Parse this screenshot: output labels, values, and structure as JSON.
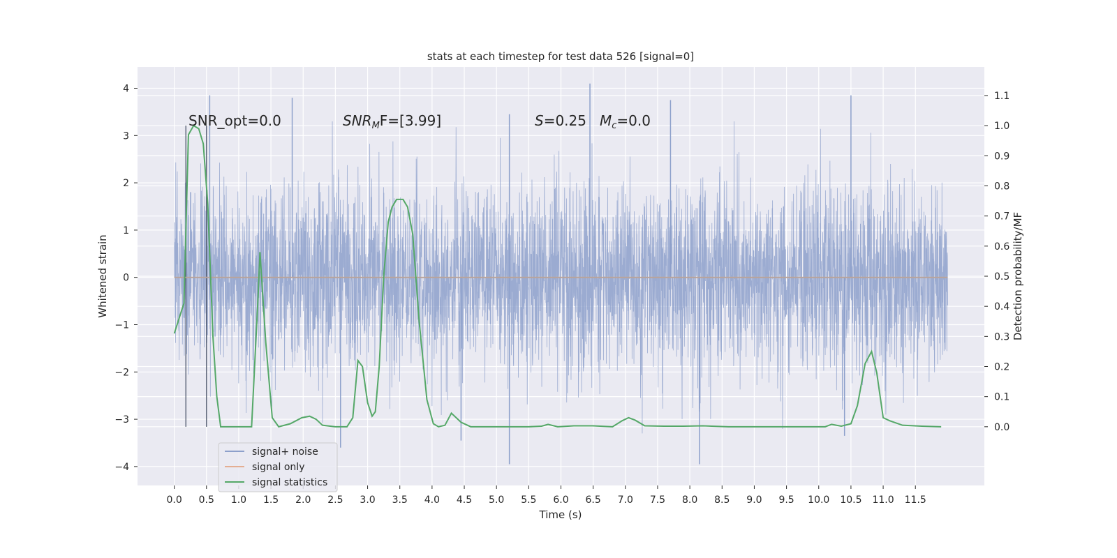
{
  "chart_data": {
    "type": "line",
    "title": "stats at each timestep for test data 526 [signal=0]",
    "xlabel": "Time (s)",
    "ylabel_left": "Whitened strain",
    "ylabel_right": "Detection probability/MF",
    "xlim": [
      -0.57,
      12.57
    ],
    "ylim_left": [
      -4.4,
      4.45
    ],
    "ylim_right": [
      -0.195,
      1.195
    ],
    "x_ticks": [
      0.0,
      0.5,
      1.0,
      1.5,
      2.0,
      2.5,
      3.0,
      3.5,
      4.0,
      4.5,
      5.0,
      5.5,
      6.0,
      6.5,
      7.0,
      7.5,
      8.0,
      8.5,
      9.0,
      9.5,
      10.0,
      10.5,
      11.0,
      11.5
    ],
    "x_tick_labels": [
      "0.0",
      "0.5",
      "1.0",
      "1.5",
      "2.0",
      "2.5",
      "3.0",
      "3.5",
      "4.0",
      "4.5",
      "5.0",
      "5.5",
      "6.0",
      "6.5",
      "7.0",
      "7.5",
      "8.0",
      "8.5",
      "9.0",
      "9.5",
      "10.0",
      "10.5",
      "11.0",
      "11.5"
    ],
    "y_left_ticks": [
      -4,
      -3,
      -2,
      -1,
      0,
      1,
      2,
      3,
      4
    ],
    "y_left_tick_labels": [
      "−4",
      "−3",
      "−2",
      "−1",
      "0",
      "1",
      "2",
      "3",
      "4"
    ],
    "y_right_ticks": [
      0.0,
      0.1,
      0.2,
      0.3,
      0.4,
      0.5,
      0.6,
      0.7,
      0.8,
      0.9,
      1.0,
      1.1
    ],
    "y_right_tick_labels": [
      "0.0",
      "0.1",
      "0.2",
      "0.3",
      "0.4",
      "0.5",
      "0.6",
      "0.7",
      "0.8",
      "0.9",
      "1.0",
      "1.1"
    ],
    "grid": true,
    "legend_position": "lower-left",
    "annotations": {
      "snr_opt": "SNR_opt=0.0",
      "snr_mf_main": "SNR",
      "snr_mf_sub": "M",
      "snr_mf_rest": "F=[3.99]",
      "s_italic": "S",
      "s_value": "=0.25",
      "mc_main": "M",
      "mc_sub": "c",
      "mc_value": "=0.0"
    },
    "vertical_markers_x": [
      0.18,
      0.5
    ],
    "series": [
      {
        "name": "signal+ noise",
        "color": "#8da0cb",
        "axis": "left",
        "x_range": [
          0.0,
          12.0
        ],
        "envelope_typical": [
          -1.5,
          1.5
        ],
        "extremes": [
          {
            "x": 0.55,
            "y": 3.85
          },
          {
            "x": 1.83,
            "y": 3.8
          },
          {
            "x": 2.58,
            "y": -3.6
          },
          {
            "x": 4.45,
            "y": -3.45
          },
          {
            "x": 5.2,
            "y": 3.45
          },
          {
            "x": 5.2,
            "y": -3.95
          },
          {
            "x": 6.45,
            "y": 4.1
          },
          {
            "x": 7.7,
            "y": 3.75
          },
          {
            "x": 8.15,
            "y": -3.95
          },
          {
            "x": 10.5,
            "y": 3.85
          },
          {
            "x": 10.4,
            "y": -3.35
          }
        ]
      },
      {
        "name": "signal only",
        "color": "#dd8452",
        "axis": "left",
        "x": [
          0.0,
          12.0
        ],
        "y": [
          0.0,
          0.0
        ]
      },
      {
        "name": "signal statistics",
        "color": "#55a868",
        "axis": "right",
        "x": [
          0.0,
          0.15,
          0.22,
          0.3,
          0.38,
          0.45,
          0.52,
          0.6,
          0.66,
          0.72,
          1.0,
          1.2,
          1.3,
          1.33,
          1.42,
          1.52,
          1.62,
          1.8,
          1.98,
          2.1,
          2.2,
          2.3,
          2.5,
          2.68,
          2.77,
          2.85,
          2.92,
          3.0,
          3.07,
          3.12,
          3.18,
          3.25,
          3.32,
          3.38,
          3.45,
          3.55,
          3.62,
          3.7,
          3.8,
          3.92,
          4.02,
          4.1,
          4.2,
          4.3,
          4.45,
          4.6,
          5.0,
          5.5,
          5.7,
          5.8,
          5.95,
          6.2,
          6.5,
          6.8,
          6.95,
          7.05,
          7.15,
          7.3,
          7.6,
          7.9,
          8.2,
          8.6,
          9.0,
          9.6,
          10.1,
          10.2,
          10.35,
          10.5,
          10.6,
          10.72,
          10.82,
          10.9,
          11.0,
          11.1,
          11.3,
          11.6,
          11.9
        ],
        "y": [
          0.31,
          0.41,
          0.97,
          1.0,
          0.99,
          0.94,
          0.74,
          0.3,
          0.1,
          0.0,
          0.0,
          0.0,
          0.43,
          0.58,
          0.28,
          0.03,
          0.0,
          0.01,
          0.03,
          0.035,
          0.025,
          0.005,
          0.0,
          0.0,
          0.03,
          0.22,
          0.2,
          0.08,
          0.035,
          0.05,
          0.2,
          0.5,
          0.68,
          0.73,
          0.755,
          0.755,
          0.73,
          0.64,
          0.35,
          0.09,
          0.01,
          0.0,
          0.005,
          0.045,
          0.015,
          0.0,
          0.0,
          0.0,
          0.002,
          0.008,
          0.0,
          0.003,
          0.003,
          0.0,
          0.02,
          0.03,
          0.022,
          0.003,
          0.002,
          0.002,
          0.003,
          0.0,
          0.0,
          0.0,
          0.0,
          0.008,
          0.002,
          0.01,
          0.07,
          0.21,
          0.25,
          0.18,
          0.03,
          0.02,
          0.005,
          0.002,
          0.0
        ]
      }
    ]
  }
}
